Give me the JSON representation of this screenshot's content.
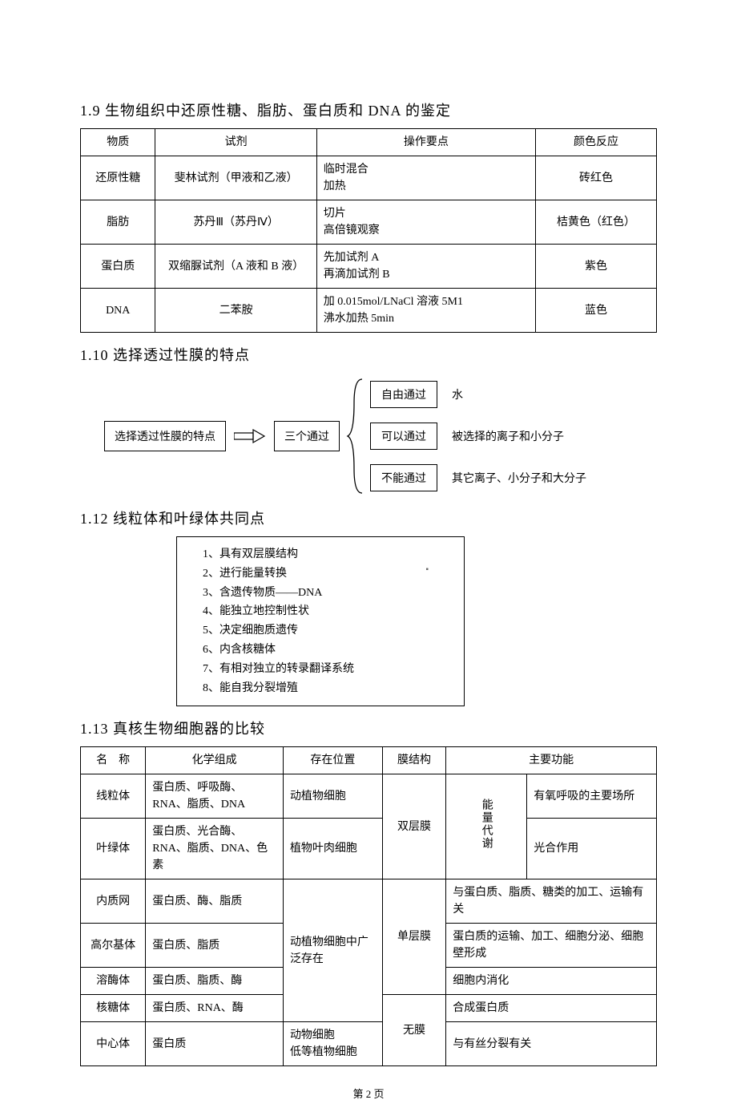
{
  "sec19": {
    "heading": "1.9 生物组织中还原性糖、脂肪、蛋白质和 DNA 的鉴定",
    "headers": [
      "物质",
      "试剂",
      "操作要点",
      "颜色反应"
    ],
    "rows": [
      {
        "substance": "还原性糖",
        "reagent": "斐林试剂（甲液和乙液）",
        "procedure": "临时混合\n加热",
        "color": "砖红色"
      },
      {
        "substance": "脂肪",
        "reagent": "苏丹Ⅲ（苏丹Ⅳ）",
        "procedure": "切片\n高倍镜观察",
        "color": "桔黄色（红色）"
      },
      {
        "substance": "蛋白质",
        "reagent": "双缩脲试剂（A 液和 B 液）",
        "procedure": "先加试剂 A\n再滴加试剂 B",
        "color": "紫色"
      },
      {
        "substance": "DNA",
        "reagent": "二苯胺",
        "procedure": "加 0.015mol/LNaCl 溶液 5M1\n沸水加热 5min",
        "color": "蓝色"
      }
    ]
  },
  "sec110": {
    "heading": "1.10 选择透过性膜的特点",
    "source_box": "选择透过性膜的特点",
    "mid_box": "三个通过",
    "passes": [
      {
        "label": "自由通过",
        "desc": "水"
      },
      {
        "label": "可以通过",
        "desc": "被选择的离子和小分子"
      },
      {
        "label": "不能通过",
        "desc": "其它离子、小分子和大分子"
      }
    ]
  },
  "sec112": {
    "heading": "1.12 线粒体和叶绿体共同点",
    "items": [
      "1、具有双层膜结构",
      "2、进行能量转换",
      "3、含遗传物质——DNA",
      "4、能独立地控制性状",
      "5、决定细胞质遗传",
      "6、内含核糖体",
      "7、有相对独立的转录翻译系统",
      "8、能自我分裂增殖"
    ]
  },
  "sec113": {
    "heading": "1.13 真核生物细胞器的比较",
    "headers": [
      "名　称",
      "化学组成",
      "存在位置",
      "膜结构",
      "主要功能"
    ],
    "energy_label": "能量代谢",
    "rows": {
      "mito": {
        "name": "线粒体",
        "comp": "蛋白质、呼吸酶、RNA、脂质、DNA",
        "loc": "动植物细胞",
        "func": "有氧呼吸的主要场所"
      },
      "chloro": {
        "name": "叶绿体",
        "comp": "蛋白质、光合酶、RNA、脂质、DNA、色素",
        "loc": "植物叶肉细胞",
        "func": "光合作用"
      },
      "er": {
        "name": "内质网",
        "comp": "蛋白质、酶、脂质",
        "func": "与蛋白质、脂质、糖类的加工、运输有关"
      },
      "golgi": {
        "name": "高尔基体",
        "comp": "蛋白质、脂质",
        "func": "蛋白质的运输、加工、细胞分泌、细胞壁形成"
      },
      "lyso": {
        "name": "溶酶体",
        "comp": "蛋白质、脂质、酶",
        "func": "细胞内消化"
      },
      "ribo": {
        "name": "核糖体",
        "comp": "蛋白质、RNA、酶",
        "func": "合成蛋白质"
      },
      "centro": {
        "name": "中心体",
        "comp": "蛋白质",
        "loc": "动物细胞\n低等植物细胞",
        "func": "与有丝分裂有关"
      }
    },
    "loc_wide": "动植物细胞中广泛存在",
    "mem_double": "双层膜",
    "mem_single": "单层膜",
    "mem_none": "无膜"
  },
  "footer": "第 2 页"
}
